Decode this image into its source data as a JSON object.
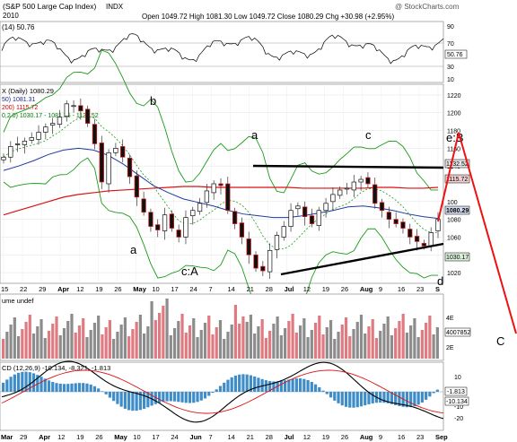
{
  "header": {
    "title": "(S&P 500 Large Cap Index)",
    "exchange": "INDX",
    "quote_label": "Open 1049.72  High 1081.30  Low 1049.72  Close 1080.29  Chg +30.98 (+2.95%)",
    "brand": "@ StockCharts.com",
    "year": "2010"
  },
  "rsi": {
    "label": "(14) 50.76",
    "value_badge": "50.76",
    "ticks": [
      "90",
      "70",
      "50",
      "30",
      "10"
    ]
  },
  "price": {
    "legend_main": "X (Daily) 1080.29",
    "legend_ma1": "50) 1081.31",
    "legend_ma2": "200) 1115.72",
    "legend_bb": "0,2.0) 1030.17 - 1081.35 - 1132.52",
    "badges": [
      "1132.52",
      "1115.72",
      "1080.29",
      "1030.17"
    ],
    "ticks": [
      "1220",
      "1200",
      "1180",
      "1160",
      "1140",
      "100",
      "1080",
      "1060",
      "1040",
      "1020"
    ],
    "annotations": {
      "b_top": "b",
      "a_mid": "a",
      "c_top": "c",
      "eB": "e:B",
      "a_low": "a",
      "cA": "c:A",
      "b_low": "b",
      "d": "d",
      "C_big": "C"
    }
  },
  "xaxis": [
    "15",
    "22",
    "29",
    "Apr",
    "12",
    "19",
    "26",
    "May",
    "10",
    "17",
    "24",
    "7",
    "14",
    "21",
    "28",
    "Jul",
    "12",
    "19",
    "26",
    "Aug",
    "9",
    "16",
    "23",
    "S"
  ],
  "xaxis_bottom": [
    "Mar",
    "29",
    "Apr",
    "12",
    "19",
    "26",
    "May",
    "10",
    "17",
    "24",
    "Jun",
    "7",
    "14",
    "21",
    "28",
    "Jul",
    "12",
    "19",
    "26",
    "Aug",
    "9",
    "16",
    "23",
    "Sep"
  ],
  "volume": {
    "label": "ume undef",
    "badge": "4007852",
    "ticks": [
      "4E",
      "2E"
    ]
  },
  "macd": {
    "label": "CD (12,26,9) -10.134, -8.321, -1.813",
    "badges": [
      "-1.813",
      "-10.134"
    ],
    "ticks": [
      "10",
      "0",
      "-10",
      "-20"
    ]
  },
  "chart_data": {
    "type": "line",
    "title": "(S&P 500 Large Cap Index)",
    "series": [
      {
        "name": "Close",
        "values": [
          1150,
          1162,
          1165,
          1168,
          1172,
          1178,
          1184,
          1188,
          1195,
          1210,
          1208,
          1202,
          1188,
          1165,
          1122,
          1155,
          1160,
          1150,
          1128,
          1105,
          1088,
          1072,
          1068,
          1085,
          1070,
          1060,
          1082,
          1090,
          1098,
          1112,
          1120,
          1118,
          1090,
          1075,
          1060,
          1040,
          1025,
          1022,
          1045,
          1062,
          1072,
          1090,
          1095,
          1083,
          1075,
          1090,
          1098,
          1108,
          1113,
          1115,
          1122,
          1125,
          1120,
          1098,
          1090,
          1080,
          1075,
          1070,
          1060,
          1055,
          1050,
          1065,
          1080
        ]
      },
      {
        "name": "MA(50)",
        "values": [
          1135,
          1140,
          1146,
          1153,
          1158,
          1160,
          1158,
          1152,
          1142,
          1130,
          1118,
          1110,
          1103,
          1099,
          1095,
          1090,
          1086,
          1084,
          1082,
          1082,
          1084,
          1087,
          1090,
          1094,
          1095,
          1093,
          1090,
          1086,
          1083,
          1081
        ]
      },
      {
        "name": "MA(200)",
        "values": [
          1085,
          1090,
          1095,
          1100,
          1105,
          1108,
          1110,
          1112,
          1113,
          1114,
          1115,
          1116,
          1117,
          1117,
          1116,
          1116,
          1116,
          1116,
          1116,
          1116,
          1115,
          1115,
          1115,
          1115,
          1115,
          1116,
          1116,
          1115,
          1115,
          1116
        ]
      }
    ],
    "ylim": [
      1010,
      1230
    ],
    "annotations": [
      "a",
      "b",
      "c",
      "d",
      "e:B",
      "c:A",
      "C"
    ],
    "trendlines": {
      "upper": {
        "from": 1132,
        "to": 1132
      },
      "lower": {
        "from": 1015,
        "to": 1045
      }
    }
  }
}
